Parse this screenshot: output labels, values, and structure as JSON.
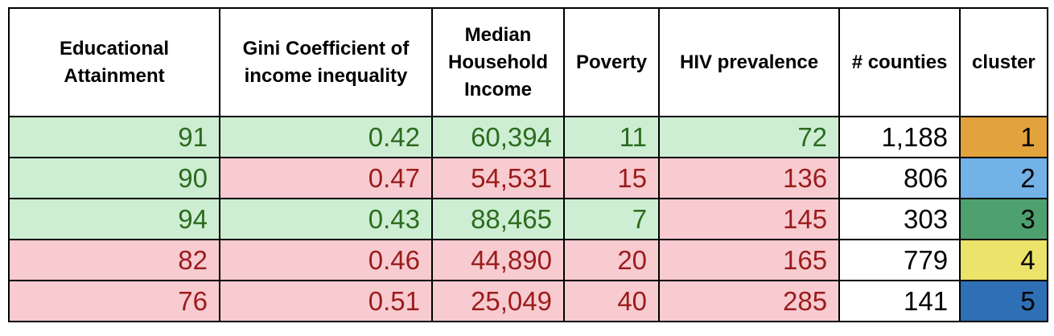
{
  "table": {
    "headers": [
      "Educational Attainment",
      "Gini Coefficient of income inequality",
      "Median Household Income",
      "Poverty",
      "HIV prevalence",
      "# counties",
      "cluster"
    ],
    "rows": [
      {
        "educational_attainment": "91",
        "gini": "0.42",
        "median_income": "60,394",
        "poverty": "11",
        "hiv_prevalence": "72",
        "counties": "1,188",
        "cluster": "1",
        "cluster_color": "#e2a23c",
        "status": [
          "good",
          "good",
          "good",
          "good",
          "good"
        ]
      },
      {
        "educational_attainment": "90",
        "gini": "0.47",
        "median_income": "54,531",
        "poverty": "15",
        "hiv_prevalence": "136",
        "counties": "806",
        "cluster": "2",
        "cluster_color": "#73b2e6",
        "status": [
          "good",
          "bad",
          "bad",
          "bad",
          "bad"
        ]
      },
      {
        "educational_attainment": "94",
        "gini": "0.43",
        "median_income": "88,465",
        "poverty": "7",
        "hiv_prevalence": "145",
        "counties": "303",
        "cluster": "3",
        "cluster_color": "#4ea06f",
        "status": [
          "good",
          "good",
          "good",
          "good",
          "bad"
        ]
      },
      {
        "educational_attainment": "82",
        "gini": "0.46",
        "median_income": "44,890",
        "poverty": "20",
        "hiv_prevalence": "165",
        "counties": "779",
        "cluster": "4",
        "cluster_color": "#ebe36a",
        "status": [
          "bad",
          "bad",
          "bad",
          "bad",
          "bad"
        ]
      },
      {
        "educational_attainment": "76",
        "gini": "0.51",
        "median_income": "25,049",
        "poverty": "40",
        "hiv_prevalence": "285",
        "counties": "141",
        "cluster": "5",
        "cluster_color": "#2f6fb5",
        "status": [
          "bad",
          "bad",
          "bad",
          "bad",
          "bad"
        ]
      }
    ]
  },
  "colors": {
    "good_background": "#cdeed3",
    "good_text": "#2c6b1f",
    "bad_background": "#f7cbd0",
    "bad_text": "#9b1c1c"
  }
}
